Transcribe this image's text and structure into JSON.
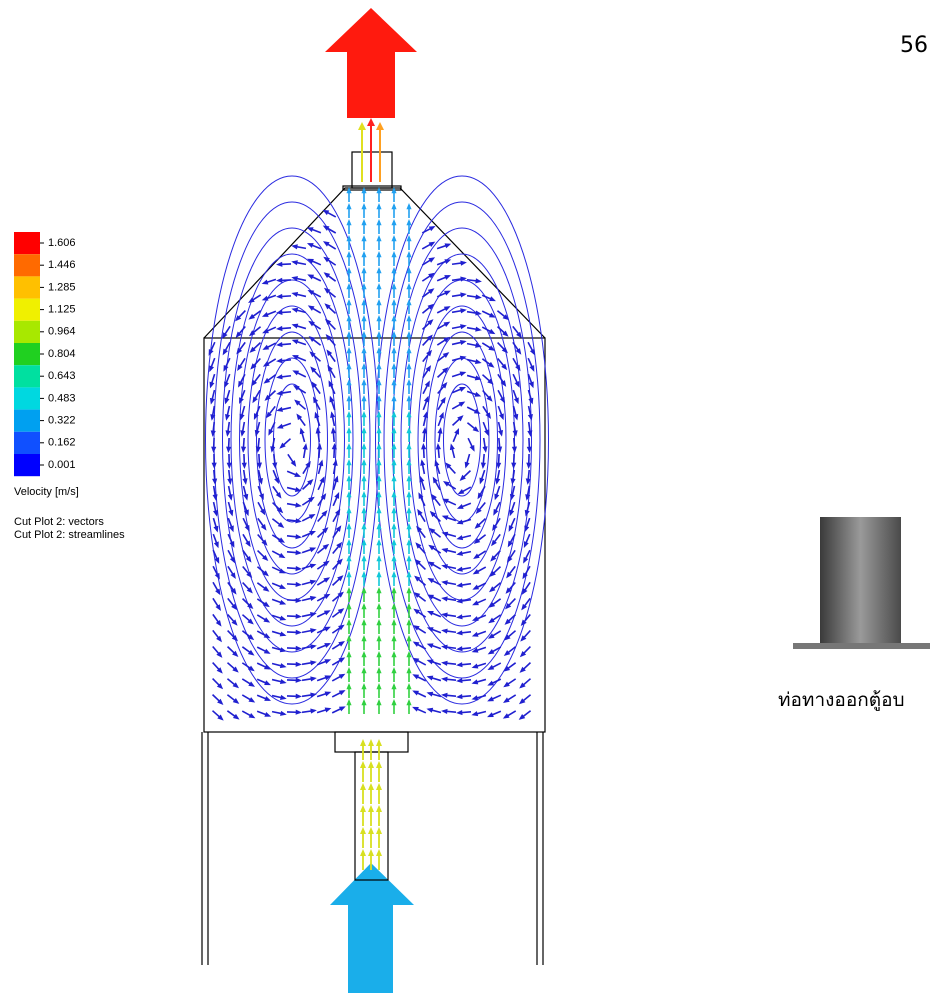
{
  "page_number": "56",
  "legend": {
    "values": [
      "1.606",
      "1.446",
      "1.285",
      "1.125",
      "0.964",
      "0.804",
      "0.643",
      "0.483",
      "0.322",
      "0.162",
      "0.001"
    ],
    "title": "Velocity [m/s]",
    "notes": [
      "Cut Plot 2: vectors",
      "Cut Plot 2: streamlines"
    ]
  },
  "caption": "ท่อทางออกตู้อบ"
}
